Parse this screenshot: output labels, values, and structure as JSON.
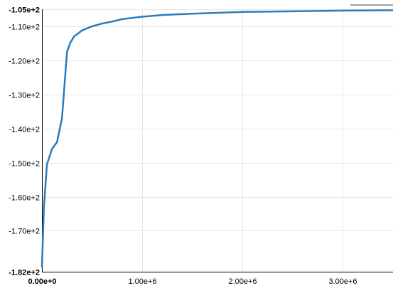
{
  "chart_data": {
    "type": "line",
    "title": "",
    "xlabel": "",
    "ylabel": "",
    "xlim": [
      0,
      3500000
    ],
    "ylim": [
      -182,
      -105
    ],
    "grid": true,
    "x_ticks": [
      {
        "value": 0,
        "label": "0.00e+0",
        "bold": true
      },
      {
        "value": 1000000,
        "label": "1.00e+6",
        "bold": false
      },
      {
        "value": 2000000,
        "label": "2.00e+6",
        "bold": false
      },
      {
        "value": 3000000,
        "label": "3.00e+6",
        "bold": false
      }
    ],
    "y_ticks": [
      {
        "value": -105,
        "label": "-1.05e+2",
        "bold": true
      },
      {
        "value": -110,
        "label": "-1.10e+2",
        "bold": false
      },
      {
        "value": -120,
        "label": "-1.20e+2",
        "bold": false
      },
      {
        "value": -130,
        "label": "-1.30e+2",
        "bold": false
      },
      {
        "value": -140,
        "label": "-1.40e+2",
        "bold": false
      },
      {
        "value": -150,
        "label": "-1.50e+2",
        "bold": false
      },
      {
        "value": -160,
        "label": "-1.60e+2",
        "bold": false
      },
      {
        "value": -170,
        "label": "-1.70e+2",
        "bold": false
      },
      {
        "value": -182,
        "label": "-1.82e+2",
        "bold": true
      }
    ],
    "series": [
      {
        "color": "#2b7bba",
        "x": [
          0,
          20000,
          50000,
          100000,
          150000,
          200000,
          250000,
          280000,
          320000,
          400000,
          500000,
          600000,
          700000,
          800000,
          1000000,
          1200000,
          1500000,
          2000000,
          2500000,
          3000000,
          3500000
        ],
        "y": [
          -180.5,
          -163,
          -150.5,
          -146,
          -144,
          -137,
          -117.5,
          -115,
          -113,
          -111.2,
          -110,
          -109.2,
          -108.6,
          -107.9,
          -107.2,
          -106.7,
          -106.3,
          -105.8,
          -105.6,
          -105.4,
          -105.3
        ]
      }
    ]
  },
  "decor": {
    "corner_mark_color": "#a0a0a0"
  }
}
